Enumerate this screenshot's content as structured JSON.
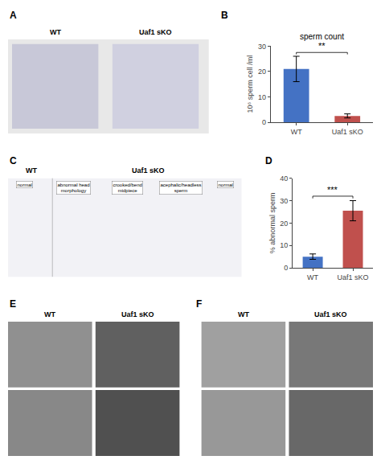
{
  "chart_data": [
    {
      "type": "image",
      "annotations": [
        "A",
        "WT",
        "Uaf1 sKO"
      ],
      "color": "#e8e8e8",
      "colors": [
        "#c8c8d8",
        "#d0d0e0"
      ]
    },
    {
      "type": "bar",
      "title": "sperm count",
      "categories": [
        "WT",
        "Uaf1 sKO"
      ],
      "values": [
        21,
        2.5
      ],
      "errors": [
        5,
        0.8
      ],
      "colors": [
        "#4472C4",
        "#C0504D"
      ],
      "ylabel": "10⁶ sperm cell /ml",
      "ylim": [
        0,
        30
      ],
      "yticks": [
        0,
        10,
        20,
        30
      ],
      "grid": false,
      "annotations": [
        "B",
        "**"
      ]
    },
    {
      "type": "image",
      "annotations": [
        "C",
        "WT",
        "Uaf1 sKO"
      ],
      "color": "#f2f2f6",
      "categories": [
        "normal",
        "abnormal head\nmorphology",
        "crooked/bend\nmidpiece",
        "acephalic/headless\nsperm",
        "normal"
      ]
    },
    {
      "type": "bar",
      "categories": [
        "WT",
        "Uaf1 sKO"
      ],
      "values": [
        5,
        25.5
      ],
      "errors": [
        1.2,
        4.5
      ],
      "colors": [
        "#4472C4",
        "#C0504D"
      ],
      "ylabel": "% abnormal sperm",
      "ylim": [
        0,
        40
      ],
      "yticks": [
        0,
        10,
        20,
        30,
        40
      ],
      "grid": false,
      "annotations": [
        "D",
        "***"
      ]
    },
    {
      "type": "image",
      "annotations": [
        "E",
        "WT",
        "Uaf1 sKO"
      ],
      "colors": [
        "#909090",
        "#606060",
        "#888888",
        "#505050"
      ]
    },
    {
      "type": "image",
      "annotations": [
        "F",
        "WT",
        "Uaf1 sKO"
      ],
      "colors": [
        "#a0a0a0",
        "#787878",
        "#989898",
        "#686868"
      ]
    }
  ]
}
